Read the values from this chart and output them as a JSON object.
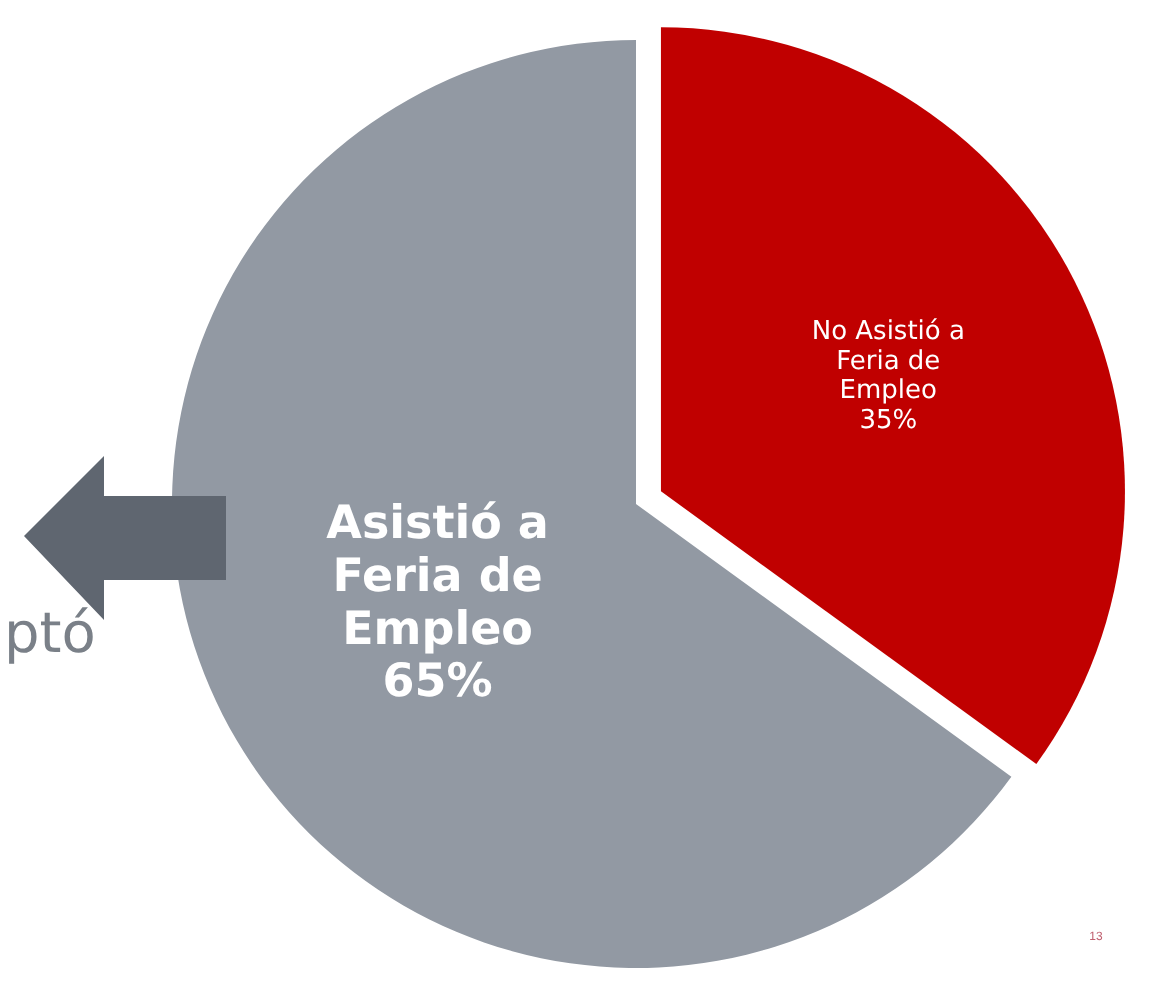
{
  "chart_data": {
    "type": "pie",
    "categories": [
      "Asistió a Feria de Empleo",
      "No Asistió a Feria de Empleo"
    ],
    "values": [
      65,
      35
    ],
    "value_labels": [
      "65%",
      "35%"
    ],
    "colors": [
      "#9299a3",
      "#c00000"
    ],
    "annotations": [
      "ptó",
      "13"
    ]
  }
}
